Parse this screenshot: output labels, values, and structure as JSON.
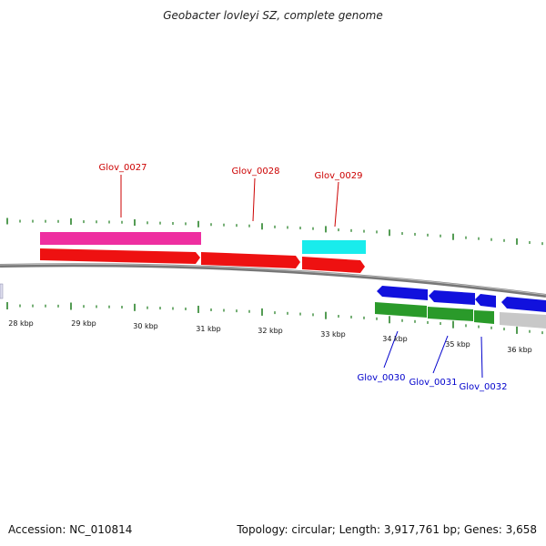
{
  "title": "Geobacter lovleyi SZ, complete genome",
  "footer": {
    "accession": "Accession: NC_010814",
    "summary": "Topology: circular; Length: 3,917,761 bp; Genes: 3,658"
  },
  "colors": {
    "forward_label": "#cc0000",
    "reverse_label": "#0000cc",
    "tick": "#1a7a1a",
    "backbone": "#777777",
    "pink": "#ee2fa0",
    "red": "#ee1111",
    "cyan": "#19ecec",
    "blue": "#1111dd",
    "green": "#2a9a2a",
    "gray": "#c8c8c8"
  },
  "gene_labels": {
    "forward": [
      "Glov_0027",
      "Glov_0028",
      "Glov_0029"
    ],
    "reverse": [
      "Glov_0030",
      "Glov_0031",
      "Glov_0032"
    ]
  },
  "scale_labels": [
    "28 kbp",
    "29 kbp",
    "30 kbp",
    "31 kbp",
    "32 kbp",
    "33 kbp",
    "34 kbp",
    "35 kbp",
    "36 kbp"
  ]
}
